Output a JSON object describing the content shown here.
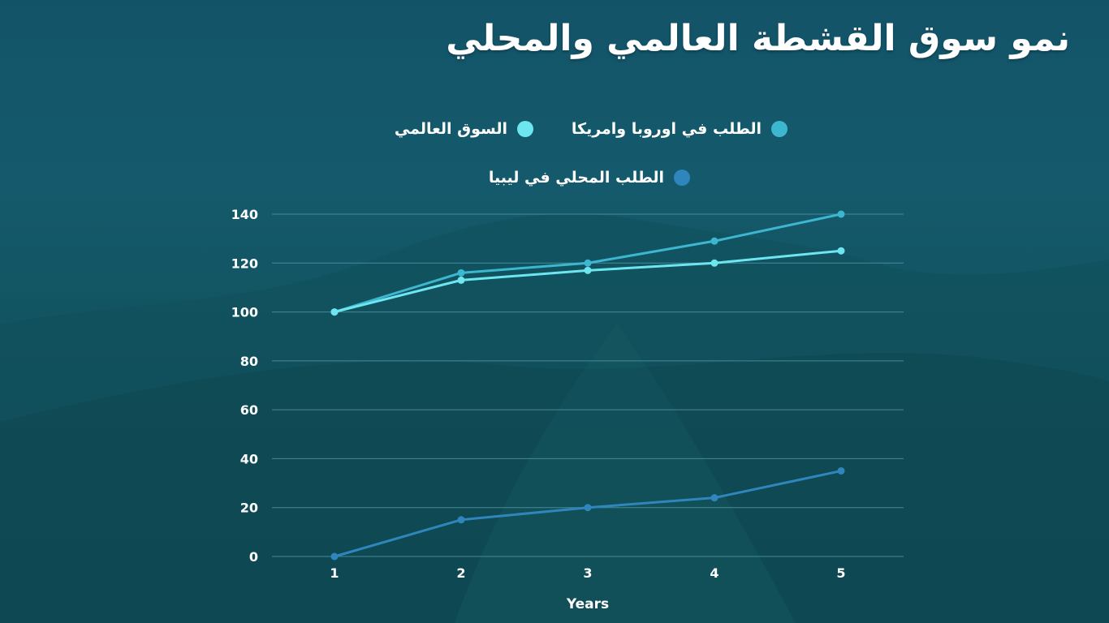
{
  "title": "نمو سوق القشطة العالمي والمحلي",
  "colors": {
    "series_1": "#3db6d0",
    "series_2": "#6ee6ef",
    "series_3": "#2f86bc",
    "grid": "#4f95a3",
    "text": "#ffffff"
  },
  "chart_data": {
    "type": "line",
    "title": "نمو سوق القشطة العالمي والمحلي",
    "xlabel": "Years",
    "ylabel": "",
    "x": [
      1,
      2,
      3,
      4,
      5
    ],
    "x_tick_labels": [
      "1",
      "2",
      "3",
      "4",
      "5"
    ],
    "y_tick_labels": [
      "0",
      "20",
      "40",
      "60",
      "80",
      "100",
      "120",
      "140"
    ],
    "ylim": [
      0,
      140
    ],
    "grid": true,
    "legend_position": "top",
    "series": [
      {
        "name": "الطلب في اوروبا وامريكا",
        "values": [
          100,
          116,
          120,
          129,
          140
        ]
      },
      {
        "name": "السوق العالمي",
        "values": [
          100,
          113,
          117,
          120,
          125
        ]
      },
      {
        "name": "الطلب المحلي في ليبيا",
        "values": [
          0,
          15,
          20,
          24,
          35
        ]
      }
    ]
  }
}
